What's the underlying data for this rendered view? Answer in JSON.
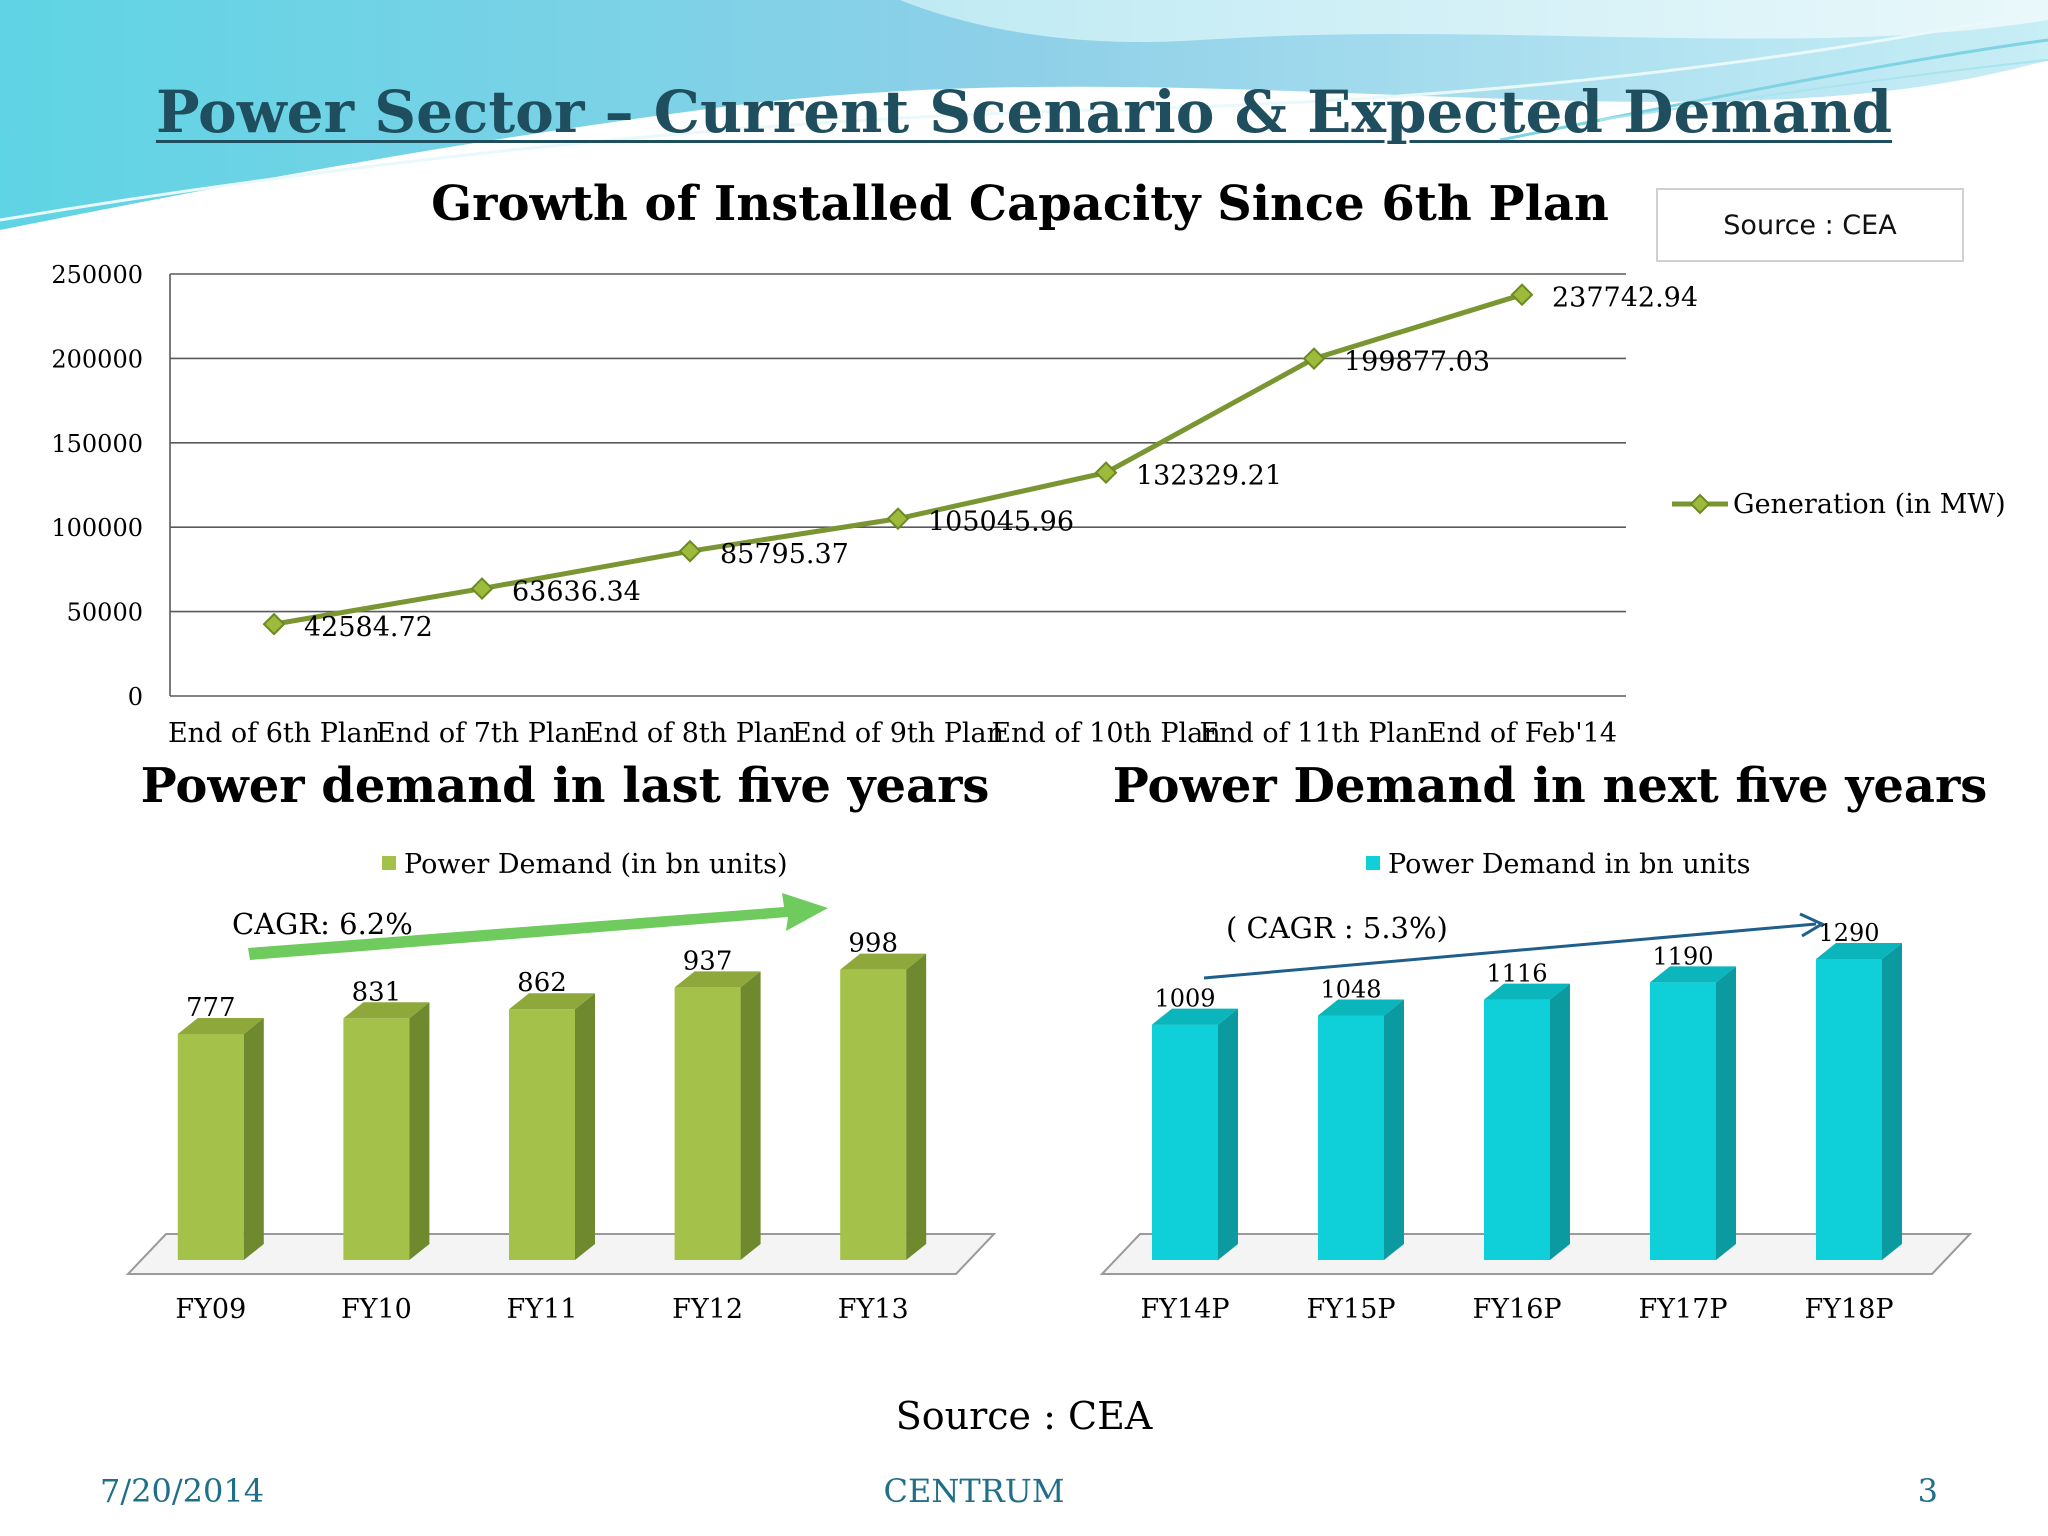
{
  "slide": {
    "title": "Power Sector – Current Scenario & Expected Demand",
    "source_box": "Source : CEA",
    "source_bottom": "Source : CEA",
    "footer_date": "7/20/2014",
    "footer_company": "CENTRUM",
    "footer_page": "3"
  },
  "colors": {
    "line": "#7a9632",
    "green_bar": "#a4c14a",
    "green_bar_dark": "#6f8a2e",
    "teal_bar": "#0fd0d8",
    "teal_bar_dark": "#0a9aa0",
    "title": "#1f4e5f",
    "footer": "#1f6f8b"
  },
  "chart_data": [
    {
      "type": "line",
      "title": "Growth of Installed Capacity Since 6th Plan",
      "categories": [
        "End of 6th Plan",
        "End of 7th Plan",
        "End of 8th Plan",
        "End of 9th Plan",
        "End of 10th Plan",
        "End of 11th Plan",
        "End of Feb'14"
      ],
      "series": [
        {
          "name": "Generation (in MW)",
          "values": [
            42584.72,
            63636.34,
            85795.37,
            105045.96,
            132329.21,
            199877.03,
            237742.94
          ],
          "labels": [
            "42584.72",
            "63636.34",
            "85795.37",
            "105045.96",
            "132329.21",
            "199877.03",
            "237742.94"
          ]
        }
      ],
      "ylim": [
        0,
        250000
      ],
      "yticks": [
        0,
        50000,
        100000,
        150000,
        200000,
        250000
      ],
      "ytick_labels": [
        "0",
        "50000",
        "100000",
        "150000",
        "200000",
        "250000"
      ],
      "grid": true,
      "legend": "right"
    },
    {
      "type": "bar",
      "title": "Power demand in last five years",
      "categories": [
        "FY09",
        "FY10",
        "FY11",
        "FY12",
        "FY13"
      ],
      "series": [
        {
          "name": "Power Demand (in bn units)",
          "values": [
            777,
            831,
            862,
            937,
            998
          ],
          "labels": [
            "777",
            "831",
            "862",
            "937",
            "998"
          ]
        }
      ],
      "annotation": "CAGR: 6.2%",
      "legend": "top"
    },
    {
      "type": "bar",
      "title": "Power Demand in next five years",
      "categories": [
        "FY14P",
        "FY15P",
        "FY16P",
        "FY17P",
        "FY18P"
      ],
      "series": [
        {
          "name": "Power Demand in bn units",
          "values": [
            1009,
            1048,
            1116,
            1190,
            1290
          ],
          "labels": [
            "1009",
            "1048",
            "1116",
            "1190",
            "1290"
          ]
        }
      ],
      "annotation": "( CAGR : 5.3%)",
      "legend": "top"
    }
  ]
}
